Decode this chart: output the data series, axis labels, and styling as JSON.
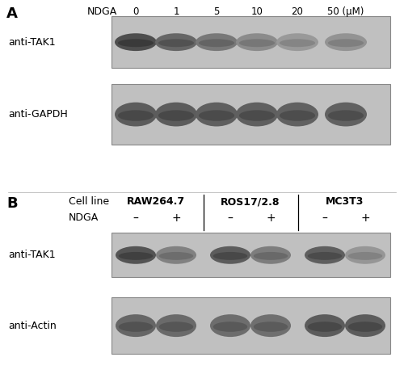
{
  "fig_width": 5.0,
  "fig_height": 4.63,
  "dpi": 100,
  "background_color": "#ffffff",
  "panel_A": {
    "label": "A",
    "ndga_label": "NDGA",
    "concentrations": [
      "0",
      "1",
      "5",
      "10",
      "20",
      "50 (μM)"
    ],
    "blot1_label": "anti-TAK1",
    "blot2_label": "anti-GAPDH",
    "box_bg": "#c0c0c0",
    "box_border": "#888888",
    "tak1_intensities": [
      0.82,
      0.65,
      0.52,
      0.38,
      0.28,
      0.32
    ],
    "gapdh_intensities": [
      0.72,
      0.72,
      0.7,
      0.7,
      0.68,
      0.68
    ]
  },
  "panel_B": {
    "label": "B",
    "cell_line_label": "Cell line",
    "cell_lines": [
      "RAW264.7",
      "ROS17/2.8",
      "MC3T3"
    ],
    "ndga_label": "NDGA",
    "minus_plus": [
      "–",
      "+",
      "–",
      "+",
      "–",
      "+"
    ],
    "blot1_label": "anti-TAK1",
    "blot2_label": "anti-Actin",
    "box_bg": "#c0c0c0",
    "box_border": "#888888",
    "tak1_intensities_B": [
      0.78,
      0.45,
      0.72,
      0.48,
      0.7,
      0.3
    ],
    "actin_intensities_B": [
      0.65,
      0.62,
      0.6,
      0.58,
      0.72,
      0.72
    ]
  }
}
